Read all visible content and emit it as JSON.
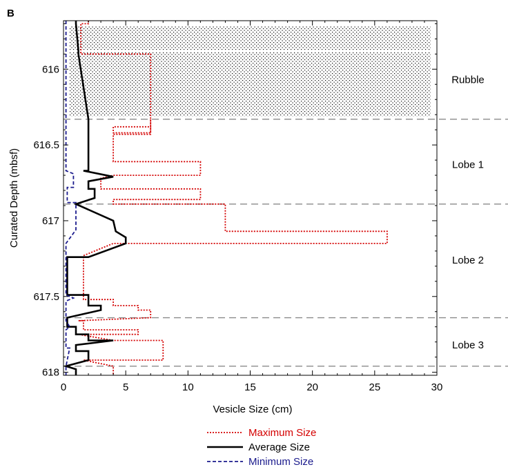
{
  "chart_data": {
    "type": "line",
    "panel_label": "B",
    "xlabel": "Vesicle Size (cm)",
    "ylabel": "Curated Depth (mbsf)",
    "xlim": [
      0,
      30
    ],
    "ylim": [
      615.68,
      618.02
    ],
    "y_inverted": true,
    "x_ticks": [
      0,
      5,
      10,
      15,
      20,
      25,
      30
    ],
    "y_ticks": [
      616,
      616.5,
      617,
      617.5,
      618
    ],
    "y_tick_labels": [
      "616",
      "616.5",
      "617",
      "617.5",
      "618"
    ],
    "regions": [
      {
        "label": "Rubble",
        "top": 615.68,
        "bottom": 616.33,
        "hatched": true
      },
      {
        "label": "Lobe 1",
        "top": 616.33,
        "bottom": 616.89
      },
      {
        "label": "Lobe 2",
        "top": 616.89,
        "bottom": 617.64
      },
      {
        "label": "Lobe 3",
        "top": 617.64,
        "bottom": 617.96
      }
    ],
    "boundaries": [
      616.33,
      616.89,
      617.64,
      617.96
    ],
    "legend": {
      "placement": "bottom-center"
    },
    "series": [
      {
        "name": "Maximum Size",
        "color": "#d40000",
        "style": "dotted",
        "points": [
          [
            2,
            615.68
          ],
          [
            2,
            615.7
          ],
          [
            1.4,
            615.7
          ],
          [
            1.4,
            615.9
          ],
          [
            7,
            615.9
          ],
          [
            7,
            616.38
          ],
          [
            4,
            616.38
          ],
          [
            4,
            616.42
          ],
          [
            7,
            616.42
          ],
          [
            7,
            616.33
          ],
          [
            7,
            616.43
          ],
          [
            4,
            616.43
          ],
          [
            4,
            616.61
          ],
          [
            11,
            616.61
          ],
          [
            11,
            616.7
          ],
          [
            11,
            616.7
          ],
          [
            4,
            616.7
          ],
          [
            3,
            616.72
          ],
          [
            3,
            616.79
          ],
          [
            11,
            616.79
          ],
          [
            11,
            616.86
          ],
          [
            4,
            616.86
          ],
          [
            4,
            616.89
          ],
          [
            7,
            616.89
          ],
          [
            13,
            616.89
          ],
          [
            13,
            617.0
          ],
          [
            13,
            617.07
          ],
          [
            26,
            617.07
          ],
          [
            26,
            617.15
          ],
          [
            4,
            617.15
          ],
          [
            1.6,
            617.23
          ],
          [
            1.6,
            617.52
          ],
          [
            4,
            617.52
          ],
          [
            4,
            617.56
          ],
          [
            6,
            617.56
          ],
          [
            6,
            617.59
          ],
          [
            7,
            617.59
          ],
          [
            7,
            617.64
          ],
          [
            1.2,
            617.66
          ],
          [
            1.6,
            617.66
          ],
          [
            1.6,
            617.72
          ],
          [
            6,
            617.72
          ],
          [
            6,
            617.75
          ],
          [
            1.2,
            617.75
          ],
          [
            4,
            617.79
          ],
          [
            8,
            617.79
          ],
          [
            8,
            617.92
          ],
          [
            1.6,
            617.92
          ],
          [
            4,
            617.96
          ],
          [
            4,
            618.02
          ]
        ]
      },
      {
        "name": "Average Size",
        "color": "#000000",
        "style": "solid",
        "points": [
          [
            1,
            615.68
          ],
          [
            1,
            615.7
          ],
          [
            1.2,
            615.88
          ],
          [
            1.2,
            615.9
          ],
          [
            2,
            616.33
          ],
          [
            2,
            616.67
          ],
          [
            1.6,
            616.67
          ],
          [
            4,
            616.71
          ],
          [
            2,
            616.74
          ],
          [
            2,
            616.79
          ],
          [
            2.5,
            616.79
          ],
          [
            2.5,
            616.85
          ],
          [
            1,
            616.89
          ],
          [
            4,
            617.0
          ],
          [
            4.2,
            617.07
          ],
          [
            5,
            617.11
          ],
          [
            5,
            617.15
          ],
          [
            2,
            617.24
          ],
          [
            0.3,
            617.24
          ],
          [
            0.3,
            617.49
          ],
          [
            2,
            617.49
          ],
          [
            2,
            617.56
          ],
          [
            3,
            617.56
          ],
          [
            3,
            617.59
          ],
          [
            0.3,
            617.64
          ],
          [
            0.3,
            617.7
          ],
          [
            1,
            617.7
          ],
          [
            1,
            617.75
          ],
          [
            2,
            617.75
          ],
          [
            2,
            617.79
          ],
          [
            4,
            617.79
          ],
          [
            1,
            617.82
          ],
          [
            1,
            617.86
          ],
          [
            2,
            617.86
          ],
          [
            2,
            617.92
          ],
          [
            0.2,
            617.96
          ],
          [
            1,
            617.98
          ],
          [
            1,
            618.02
          ]
        ]
      },
      {
        "name": "Minimum Size",
        "color": "#1a1a8c",
        "style": "dashed",
        "points": [
          [
            0.2,
            615.68
          ],
          [
            0.2,
            616.33
          ],
          [
            0.2,
            616.67
          ],
          [
            0.8,
            616.69
          ],
          [
            0.8,
            616.78
          ],
          [
            0.3,
            616.78
          ],
          [
            0.3,
            616.88
          ],
          [
            1,
            616.88
          ],
          [
            1,
            617.06
          ],
          [
            0.2,
            617.15
          ],
          [
            0.2,
            617.49
          ],
          [
            0.8,
            617.51
          ],
          [
            0.2,
            617.53
          ],
          [
            0.2,
            617.66
          ],
          [
            0.5,
            617.7
          ],
          [
            0.2,
            617.72
          ],
          [
            0.2,
            617.84
          ],
          [
            0.5,
            617.84
          ],
          [
            0.2,
            617.96
          ],
          [
            0.2,
            618.02
          ]
        ]
      }
    ]
  }
}
